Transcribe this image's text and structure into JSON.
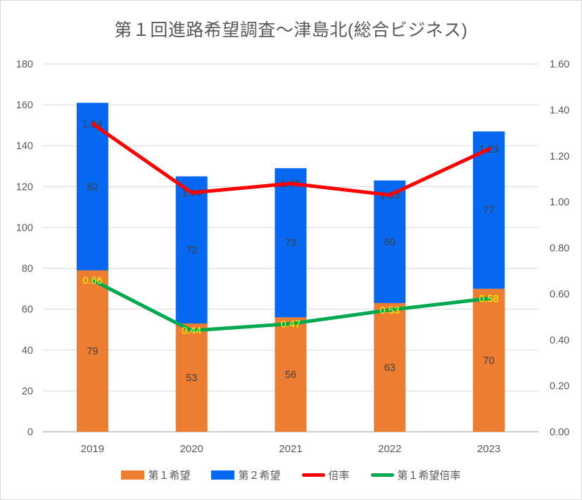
{
  "chart_data": {
    "type": "combo-stacked-bar-line",
    "title": "第１回進路希望調査～津島北(総合ビジネス)",
    "categories": [
      "2019",
      "2020",
      "2021",
      "2022",
      "2023"
    ],
    "bar_series": [
      {
        "name": "第１希望",
        "type": "bar",
        "stack": true,
        "color": "#ED7D31",
        "label_color": "#404040",
        "values": [
          79,
          53,
          56,
          63,
          70
        ],
        "labels": [
          "79",
          "53",
          "56",
          "63",
          "70"
        ]
      },
      {
        "name": "第２希望",
        "type": "bar",
        "stack": true,
        "color": "#0667F0",
        "label_color": "#404040",
        "values": [
          82,
          72,
          73,
          60,
          77
        ],
        "labels": [
          "82",
          "72",
          "73",
          "60",
          "77"
        ]
      }
    ],
    "line_series": [
      {
        "name": "倍率",
        "type": "line",
        "axis": "right",
        "color": "#FF0000",
        "label_color": "#404040",
        "label_on_top": false,
        "values": [
          1.34,
          1.04,
          1.08,
          1.03,
          1.23
        ],
        "labels": [
          "1.34",
          "1.04",
          "1.08",
          "1.03",
          "1.23"
        ]
      },
      {
        "name": "第１希望倍率",
        "type": "line",
        "axis": "right",
        "color": "#00A850",
        "label_color": "#FFFF00",
        "label_on_top": true,
        "values": [
          0.66,
          0.44,
          0.47,
          0.53,
          0.58
        ],
        "labels": [
          "0.66",
          "0.44",
          "0.47",
          "0.53",
          "0.58"
        ]
      }
    ],
    "left_axis": {
      "min": 0,
      "max": 180,
      "step": 20,
      "ticks": [
        "0",
        "20",
        "40",
        "60",
        "80",
        "100",
        "120",
        "140",
        "160",
        "180"
      ]
    },
    "right_axis": {
      "min": 0,
      "max": 1.6,
      "step": 0.2,
      "ticks": [
        "0.00",
        "0.20",
        "0.40",
        "0.60",
        "0.80",
        "1.00",
        "1.20",
        "1.40",
        "1.60"
      ]
    },
    "grid": true,
    "legend_position": "bottom",
    "colors": {
      "grid": "#D9D9D9",
      "axis_line": "#BFBFBF",
      "tick_text": "#595959",
      "title_text": "#595959",
      "legend_text": "#595959"
    }
  }
}
